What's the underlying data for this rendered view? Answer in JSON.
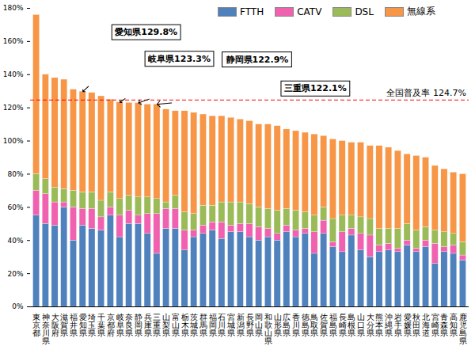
{
  "chart_data": {
    "type": "bar",
    "stacked": true,
    "categories": [
      "東京都",
      "神奈川県",
      "大阪府",
      "滋賀県",
      "福井県",
      "愛知県",
      "埼玉県",
      "千葉県",
      "京都府",
      "岐阜県",
      "奈良県",
      "静岡県",
      "兵庫県",
      "三重県",
      "山梨県",
      "富山県",
      "栃木県",
      "茨城県",
      "群馬県",
      "福岡県",
      "石川県",
      "宮城県",
      "新潟県",
      "長野県",
      "岡山県",
      "和歌山県",
      "山形県",
      "広島県",
      "香川県",
      "徳島県",
      "鳥取県",
      "佐賀県",
      "福島県",
      "長崎県",
      "島根県",
      "山口県",
      "大分県",
      "熊本県",
      "沖縄県",
      "岩手県",
      "愛媛県",
      "秋田県",
      "北海道",
      "宮崎県",
      "青森県",
      "高知県",
      "鹿児島県"
    ],
    "series": [
      {
        "name": "FTTH",
        "color": "#4f81bd",
        "values": [
          55,
          50,
          49,
          60,
          40,
          49,
          47,
          46,
          55,
          42,
          50,
          50,
          44,
          32,
          47,
          47,
          34,
          42,
          44,
          46,
          41,
          45,
          45,
          42,
          40,
          42,
          40,
          45,
          42,
          44,
          32,
          44,
          36,
          33,
          43,
          34,
          30,
          33,
          34,
          33,
          37,
          33,
          36,
          26,
          33,
          32,
          28
        ]
      },
      {
        "name": "CATV",
        "color": "#f062b0",
        "values": [
          15,
          18,
          14,
          3,
          20,
          10,
          12,
          8,
          5,
          13,
          8,
          5,
          12,
          24,
          12,
          12,
          12,
          4,
          5,
          5,
          10,
          4,
          5,
          8,
          8,
          5,
          4,
          4,
          4,
          3,
          13,
          8,
          3,
          12,
          4,
          10,
          13,
          4,
          4,
          2,
          3,
          2,
          4,
          12,
          3,
          5,
          3
        ]
      },
      {
        "name": "DSL",
        "color": "#9bbb59",
        "values": [
          10,
          9,
          9,
          8,
          10,
          10,
          10,
          10,
          9,
          10,
          9,
          11,
          10,
          9,
          4,
          8,
          11,
          10,
          12,
          10,
          12,
          14,
          13,
          12,
          12,
          12,
          14,
          10,
          12,
          10,
          10,
          8,
          14,
          10,
          8,
          10,
          10,
          10,
          9,
          12,
          10,
          11,
          8,
          8,
          9,
          7,
          8
        ]
      },
      {
        "name": "無線系",
        "color": "#f79646",
        "values": [
          96,
          63,
          66,
          66,
          61,
          60.8,
          60,
          63,
          56,
          58.3,
          56,
          56.9,
          56,
          57.1,
          56,
          51,
          61,
          61,
          55,
          54,
          52,
          51,
          50,
          50,
          50,
          51,
          51,
          48,
          48,
          48,
          49,
          43,
          48,
          45,
          44,
          45,
          44,
          50,
          49,
          47,
          42,
          45,
          42,
          39,
          38,
          37,
          41
        ]
      }
    ],
    "ylim": [
      0,
      180
    ],
    "yticks": [
      {
        "value": 0,
        "label": "0%"
      },
      {
        "value": 20,
        "label": "20%"
      },
      {
        "value": 40,
        "label": "40%"
      },
      {
        "value": 60,
        "label": "60%"
      },
      {
        "value": 80,
        "label": "80%"
      },
      {
        "value": 100,
        "label": "100%"
      },
      {
        "value": 120,
        "label": "120%"
      },
      {
        "value": 140,
        "label": "140%"
      },
      {
        "value": 160,
        "label": "160%"
      },
      {
        "value": 180,
        "label": "180%"
      }
    ],
    "grid": false,
    "legend": "top",
    "reference_line": {
      "value": 124.7,
      "label": "全国普及率 124.7%"
    },
    "annotations": [
      {
        "text": "愛知県129.8%",
        "category": "愛知県"
      },
      {
        "text": "岐阜県123.3%",
        "category": "岐阜県"
      },
      {
        "text": "静岡県122.9%",
        "category": "静岡県"
      },
      {
        "text": "三重県122.1%",
        "category": "三重県"
      }
    ]
  }
}
